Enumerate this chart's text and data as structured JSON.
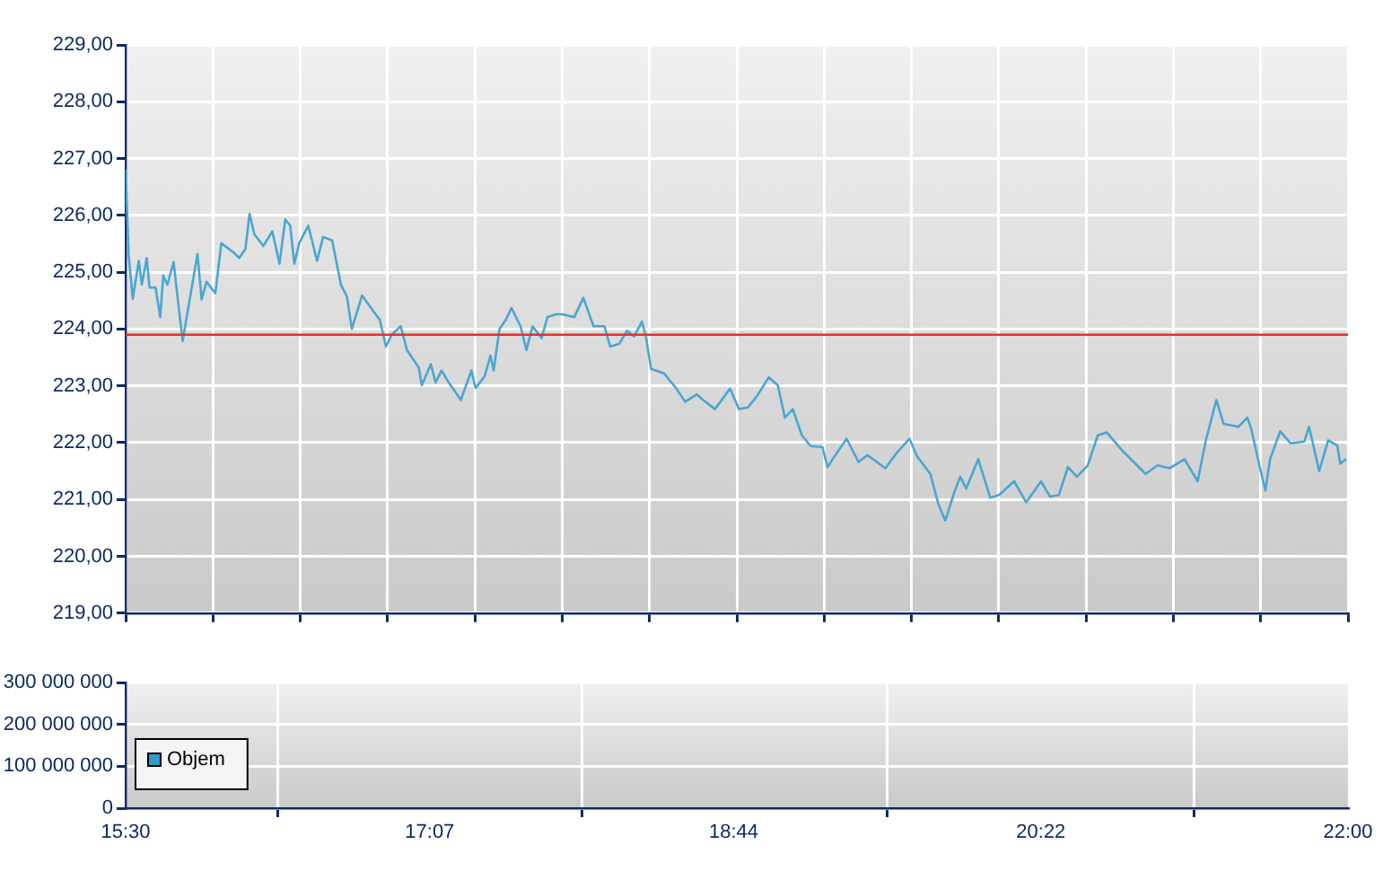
{
  "chart_data": [
    {
      "type": "line",
      "marker": "none",
      "grid": true,
      "tick_labels": "y",
      "x": [
        15.5,
        15.516,
        15.538,
        15.57,
        15.586,
        15.612,
        15.627,
        15.659,
        15.684,
        15.7,
        15.722,
        15.755,
        15.77,
        15.803,
        15.882,
        15.904,
        15.93,
        15.977,
        16.009,
        16.073,
        16.104,
        16.137,
        16.159,
        16.184,
        16.232,
        16.28,
        16.318,
        16.349,
        16.375,
        16.397,
        16.423,
        16.471,
        16.518,
        16.55,
        16.598,
        16.645,
        16.677,
        16.703,
        16.757,
        16.805,
        16.852,
        16.884,
        16.915,
        16.963,
        16.996,
        17.059,
        17.075,
        17.123,
        17.148,
        17.18,
        17.218,
        17.25,
        17.282,
        17.339,
        17.361,
        17.409,
        17.44,
        17.457,
        17.488,
        17.521,
        17.552,
        17.6,
        17.631,
        17.664,
        17.712,
        17.743,
        17.791,
        17.822,
        17.886,
        17.934,
        17.988,
        18.046,
        18.077,
        18.125,
        18.166,
        18.204,
        18.246,
        18.268,
        18.294,
        18.363,
        18.427,
        18.475,
        18.538,
        18.571,
        18.634,
        18.714,
        18.761,
        18.809,
        18.857,
        18.92,
        18.968,
        19.006,
        19.048,
        19.096,
        19.143,
        19.206,
        19.232,
        19.27,
        19.334,
        19.397,
        19.445,
        19.54,
        19.598,
        19.668,
        19.709,
        19.779,
        19.821,
        19.859,
        19.907,
        19.938,
        19.97,
        20.034,
        20.098,
        20.145,
        20.225,
        20.289,
        20.368,
        20.416,
        20.463,
        20.511,
        20.559,
        20.616,
        20.67,
        20.718,
        20.797,
        20.861,
        20.924,
        20.988,
        21.052,
        21.131,
        21.201,
        21.243,
        21.3,
        21.339,
        21.418,
        21.465,
        21.487,
        21.529,
        21.561,
        21.586,
        21.64,
        21.694,
        21.768,
        21.793,
        21.847,
        21.895,
        21.943,
        21.959,
        21.99
      ],
      "series": [
        {
          "color": "#4aa6d0",
          "values": [
            226.81,
            225.3,
            224.53,
            225.2,
            224.78,
            225.25,
            224.73,
            224.73,
            224.21,
            224.94,
            224.78,
            225.18,
            224.73,
            223.79,
            225.32,
            224.52,
            224.83,
            224.63,
            225.51,
            225.35,
            225.25,
            225.41,
            226.03,
            225.67,
            225.46,
            225.72,
            225.15,
            225.93,
            225.82,
            225.15,
            225.51,
            225.82,
            225.2,
            225.62,
            225.56,
            224.78,
            224.57,
            224.0,
            224.59,
            224.37,
            224.16,
            223.69,
            223.9,
            224.05,
            223.63,
            223.32,
            223.01,
            223.38,
            223.06,
            223.27,
            223.06,
            222.91,
            222.75,
            223.27,
            222.96,
            223.17,
            223.53,
            223.27,
            224.0,
            224.16,
            224.37,
            224.05,
            223.63,
            224.05,
            223.84,
            224.21,
            224.26,
            224.26,
            224.21,
            224.55,
            224.05,
            224.05,
            223.69,
            223.74,
            223.97,
            223.87,
            224.13,
            223.84,
            223.3,
            223.22,
            222.96,
            222.72,
            222.85,
            222.75,
            222.59,
            222.95,
            222.59,
            222.62,
            222.82,
            223.15,
            223.01,
            222.44,
            222.59,
            222.13,
            221.94,
            221.92,
            221.57,
            221.76,
            222.07,
            221.66,
            221.78,
            221.55,
            221.81,
            222.07,
            221.76,
            221.45,
            220.93,
            220.63,
            221.13,
            221.4,
            221.19,
            221.71,
            221.03,
            221.08,
            221.32,
            220.95,
            221.32,
            221.05,
            221.08,
            221.57,
            221.4,
            221.6,
            222.13,
            222.18,
            221.87,
            221.66,
            221.45,
            221.6,
            221.55,
            221.71,
            221.32,
            222.02,
            222.75,
            222.33,
            222.28,
            222.44,
            222.23,
            221.6,
            221.16,
            221.71,
            222.2,
            221.99,
            222.02,
            222.28,
            221.5,
            222.04,
            221.95,
            221.63,
            221.71
          ]
        }
      ],
      "xlim": [
        15.5,
        22
      ],
      "xticks": [
        {
          "value": 15.5,
          "label": null
        },
        {
          "value": 15.964,
          "label": null
        },
        {
          "value": 16.429,
          "label": null
        },
        {
          "value": 16.893,
          "label": null
        },
        {
          "value": 17.357,
          "label": null
        },
        {
          "value": 17.821,
          "label": null
        },
        {
          "value": 18.286,
          "label": null
        },
        {
          "value": 18.75,
          "label": null
        },
        {
          "value": 19.214,
          "label": null
        },
        {
          "value": 19.679,
          "label": null
        },
        {
          "value": 20.143,
          "label": null
        },
        {
          "value": 20.607,
          "label": null
        },
        {
          "value": 21.071,
          "label": null
        },
        {
          "value": 21.536,
          "label": null
        },
        {
          "value": 22,
          "label": null
        }
      ],
      "ylim": [
        219,
        229
      ],
      "yticks": [
        {
          "value": 219,
          "label": "219,00"
        },
        {
          "value": 220,
          "label": "220,00"
        },
        {
          "value": 221,
          "label": "221,00"
        },
        {
          "value": 222,
          "label": "222,00"
        },
        {
          "value": 223,
          "label": "223,00"
        },
        {
          "value": 224,
          "label": "224,00"
        },
        {
          "value": 225,
          "label": "225,00"
        },
        {
          "value": 226,
          "label": "226,00"
        },
        {
          "value": 227,
          "label": "227,00"
        },
        {
          "value": 228,
          "label": "228,00"
        },
        {
          "value": 229,
          "label": "229,00"
        }
      ],
      "ref_lines": [
        {
          "axis": "y",
          "value": 223.9,
          "color": "#e03030"
        }
      ]
    },
    {
      "type": "bar",
      "grid": true,
      "legend": "left",
      "x": [
        15.5,
        22
      ],
      "series": [
        {
          "name": "Objem",
          "color": "#3399cc",
          "values": [
            0,
            0
          ]
        }
      ],
      "xlim": [
        15.5,
        22
      ],
      "xticks": [
        {
          "value": 15.5,
          "label": "15:30"
        },
        {
          "value": 17.117,
          "label": "17:07"
        },
        {
          "value": 18.733,
          "label": "18:44"
        },
        {
          "value": 20.367,
          "label": "20:22"
        },
        {
          "value": 22,
          "label": "22:00"
        }
      ],
      "ylim": [
        0,
        300000000
      ],
      "yticks": [
        {
          "value": 0,
          "label": "0"
        },
        {
          "value": 100000000,
          "label": "100 000 000"
        },
        {
          "value": 200000000,
          "label": "200 000 000"
        },
        {
          "value": 300000000,
          "label": "300 000 000"
        }
      ]
    }
  ]
}
